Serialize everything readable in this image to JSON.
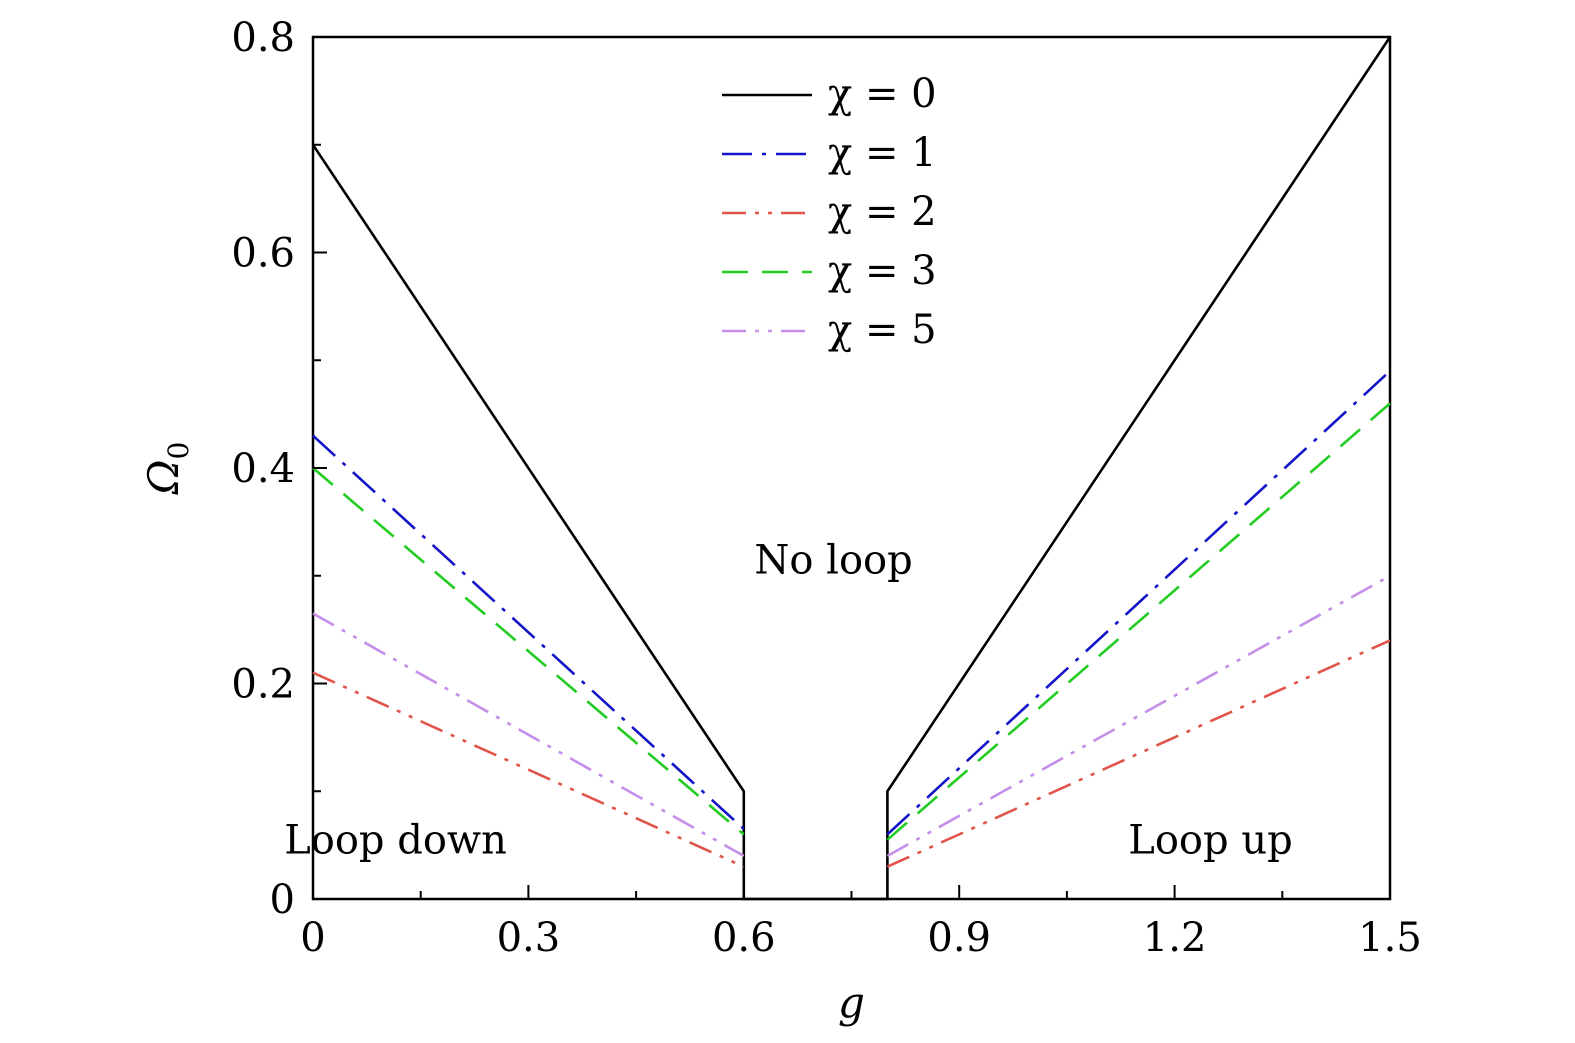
{
  "chart_data": {
    "type": "line",
    "xlabel": "g",
    "ylabel": "Ω",
    "ylabel_sub": "0",
    "xlim": [
      0,
      1.5
    ],
    "ylim": [
      0,
      0.8
    ],
    "x_ticks": [
      {
        "value": 0,
        "label": "0"
      },
      {
        "value": 0.3,
        "label": "0.3"
      },
      {
        "value": 0.6,
        "label": "0.6"
      },
      {
        "value": 0.9,
        "label": "0.9"
      },
      {
        "value": 1.2,
        "label": "1.2"
      },
      {
        "value": 1.5,
        "label": "1.5"
      }
    ],
    "y_ticks": [
      {
        "value": 0,
        "label": "0"
      },
      {
        "value": 0.2,
        "label": "0.2"
      },
      {
        "value": 0.4,
        "label": "0.4"
      },
      {
        "value": 0.6,
        "label": "0.6"
      },
      {
        "value": 0.8,
        "label": "0.8"
      }
    ],
    "x_minor_ticks": [
      0.15,
      0.45,
      0.75,
      1.05,
      1.35
    ],
    "y_minor_ticks": [
      0.1,
      0.3,
      0.5,
      0.7
    ],
    "legend_placement": "top-center",
    "series": [
      {
        "name": "χ = 0",
        "color": "#000000",
        "dash": "solid",
        "segments": [
          {
            "x": [
              0,
              0.6,
              0.6,
              0.8,
              0.8,
              1.5
            ],
            "y": [
              0.7,
              0.1,
              0,
              0,
              0.1,
              0.8
            ]
          }
        ]
      },
      {
        "name": "χ = 1",
        "color": "#1515c8",
        "dash": "dash-dot",
        "segments": [
          {
            "x": [
              0,
              0.6
            ],
            "y": [
              0.43,
              0.065
            ]
          },
          {
            "x": [
              0.8,
              1.5
            ],
            "y": [
              0.06,
              0.49
            ]
          }
        ]
      },
      {
        "name": "χ = 2",
        "color": "#e0554a",
        "dash": "dash-dot-dot",
        "segments": [
          {
            "x": [
              0,
              0.6
            ],
            "y": [
              0.21,
              0.03
            ]
          },
          {
            "x": [
              0.8,
              1.5
            ],
            "y": [
              0.03,
              0.24
            ]
          }
        ]
      },
      {
        "name": "χ = 3",
        "color": "#22cc22",
        "dash": "dash",
        "segments": [
          {
            "x": [
              0,
              0.6
            ],
            "y": [
              0.4,
              0.06
            ]
          },
          {
            "x": [
              0.8,
              1.5
            ],
            "y": [
              0.055,
              0.46
            ]
          }
        ]
      },
      {
        "name": "χ = 5",
        "color": "#c58ee8",
        "dash": "dash-dot-dot",
        "segments": [
          {
            "x": [
              0,
              0.6
            ],
            "y": [
              0.265,
              0.04
            ]
          },
          {
            "x": [
              0.8,
              1.5
            ],
            "y": [
              0.04,
              0.3
            ]
          }
        ]
      }
    ],
    "annotations": [
      {
        "text": "No loop",
        "x": 0.725,
        "y": 0.315
      },
      {
        "text": "Loop down",
        "x": 0.115,
        "y": 0.055
      },
      {
        "text": "Loop up",
        "x": 1.25,
        "y": 0.055
      }
    ]
  }
}
